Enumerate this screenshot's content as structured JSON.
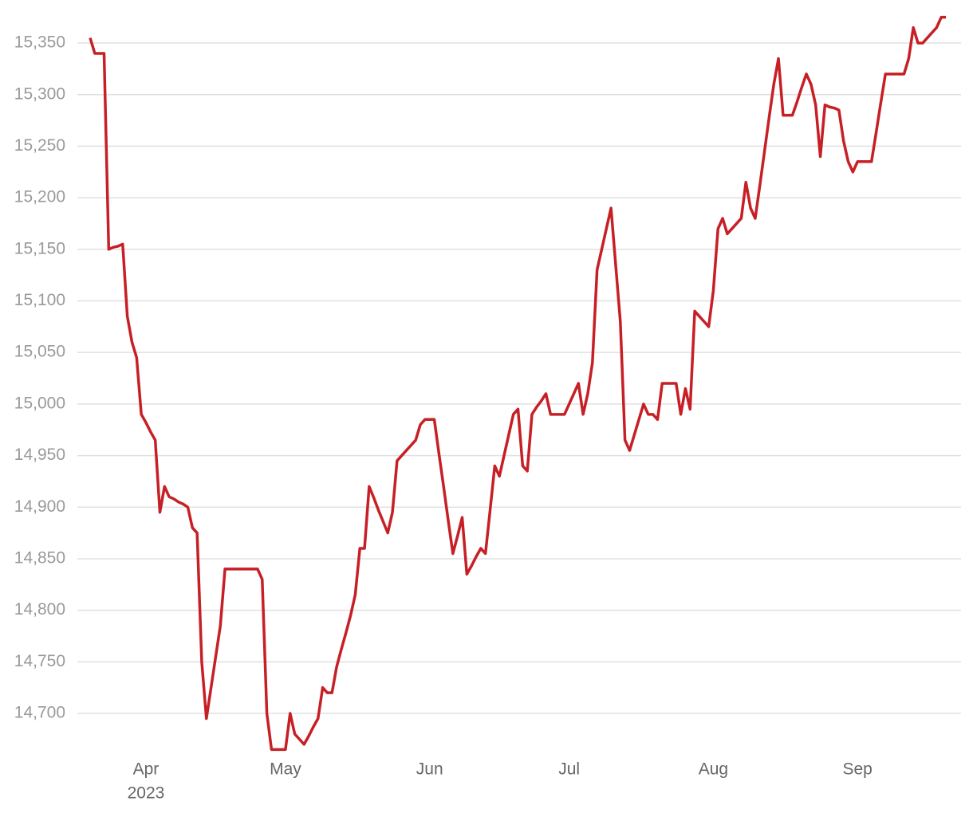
{
  "chart_data": {
    "type": "line",
    "categories": [
      null,
      null,
      null,
      null,
      null,
      null,
      null,
      null,
      null,
      null,
      null,
      null,
      "Apr",
      null,
      null,
      null,
      null,
      null,
      null,
      null,
      null,
      null,
      null,
      null,
      null,
      null,
      null,
      null,
      null,
      null,
      null,
      null,
      null,
      null,
      null,
      null,
      null,
      null,
      null,
      null,
      null,
      null,
      "May",
      null,
      null,
      null,
      null,
      null,
      null,
      null,
      null,
      null,
      null,
      null,
      null,
      null,
      null,
      null,
      null,
      null,
      null,
      null,
      null,
      null,
      null,
      null,
      null,
      null,
      null,
      null,
      null,
      null,
      null,
      "Jun",
      null,
      null,
      null,
      null,
      null,
      null,
      null,
      null,
      null,
      null,
      null,
      null,
      null,
      null,
      null,
      null,
      null,
      null,
      null,
      null,
      null,
      null,
      null,
      null,
      null,
      null,
      null,
      null,
      null,
      "Jul",
      null,
      null,
      null,
      null,
      null,
      null,
      null,
      null,
      null,
      null,
      null,
      null,
      null,
      null,
      null,
      null,
      null,
      null,
      null,
      null,
      null,
      null,
      null,
      null,
      null,
      null,
      null,
      null,
      null,
      null,
      "Aug",
      null,
      null,
      null,
      null,
      null,
      null,
      null,
      null,
      null,
      null,
      null,
      null,
      null,
      null,
      null,
      null,
      null,
      null,
      null,
      null,
      null,
      null,
      null,
      null,
      null,
      null,
      null,
      null,
      null,
      null,
      "Sep",
      null,
      null,
      null,
      null,
      null,
      null,
      null,
      null,
      null,
      null,
      null,
      null,
      null,
      null,
      null,
      null,
      null,
      null,
      null
    ],
    "year_label": "2023",
    "series": [
      {
        "color": "#c62026",
        "values": [
          15355,
          15340,
          15340,
          15340,
          15150,
          15152,
          15153,
          15155,
          15085,
          15060,
          15045,
          14990,
          14982,
          14973,
          14965,
          14895,
          14920,
          14910,
          14908,
          14905,
          14903,
          14900,
          14880,
          14875,
          14750,
          14695,
          14725,
          14755,
          14785,
          14840,
          14840,
          14840,
          14840,
          14840,
          14840,
          14840,
          14840,
          14830,
          14700,
          14665,
          14665,
          14665,
          14665,
          14700,
          14680,
          14675,
          14670,
          14678,
          14687,
          14695,
          14725,
          14720,
          14720,
          14745,
          14762,
          14778,
          14795,
          14815,
          14860,
          14860,
          14920,
          14909,
          14897,
          14886,
          14875,
          14895,
          14945,
          14950,
          14955,
          14960,
          14965,
          14980,
          14985,
          14985,
          14985,
          14952,
          14920,
          14887,
          14855,
          14872,
          14890,
          14835,
          14843,
          14852,
          14860,
          14855,
          14897,
          14940,
          14930,
          14950,
          14970,
          14990,
          14995,
          14940,
          14935,
          14990,
          14997,
          15003,
          15010,
          14990,
          14990,
          14990,
          14990,
          15000,
          15010,
          15020,
          14990,
          15010,
          15040,
          15130,
          15150,
          15170,
          15190,
          15135,
          15080,
          14965,
          14955,
          14970,
          14985,
          15000,
          14990,
          14990,
          14985,
          15020,
          15020,
          15020,
          15020,
          14990,
          15015,
          14995,
          15090,
          15085,
          15080,
          15075,
          15110,
          15170,
          15180,
          15165,
          15170,
          15175,
          15180,
          15215,
          15190,
          15180,
          15212,
          15245,
          15278,
          15310,
          15335,
          15280,
          15280,
          15280,
          15293,
          15307,
          15320,
          15310,
          15290,
          15240,
          15290,
          15288,
          15287,
          15285,
          15255,
          15235,
          15225,
          15235,
          15235,
          15235,
          15235,
          15263,
          15292,
          15320,
          15320,
          15320,
          15320,
          15320,
          15335,
          15365,
          15350,
          15350,
          15355,
          15360,
          15365,
          15375,
          15375
        ]
      }
    ],
    "ylim": [
      14660,
      15380
    ],
    "yticks": [
      {
        "value": 14700,
        "label": "14,700"
      },
      {
        "value": 14750,
        "label": "14,750"
      },
      {
        "value": 14800,
        "label": "14,800"
      },
      {
        "value": 14850,
        "label": "14,850"
      },
      {
        "value": 14900,
        "label": "14,900"
      },
      {
        "value": 14950,
        "label": "14,950"
      },
      {
        "value": 15000,
        "label": "15,000"
      },
      {
        "value": 15050,
        "label": "15,050"
      },
      {
        "value": 15100,
        "label": "15,100"
      },
      {
        "value": 15150,
        "label": "15,150"
      },
      {
        "value": 15200,
        "label": "15,200"
      },
      {
        "value": 15250,
        "label": "15,250"
      },
      {
        "value": 15300,
        "label": "15,300"
      },
      {
        "value": 15350,
        "label": "15,350"
      }
    ],
    "grid": true
  }
}
